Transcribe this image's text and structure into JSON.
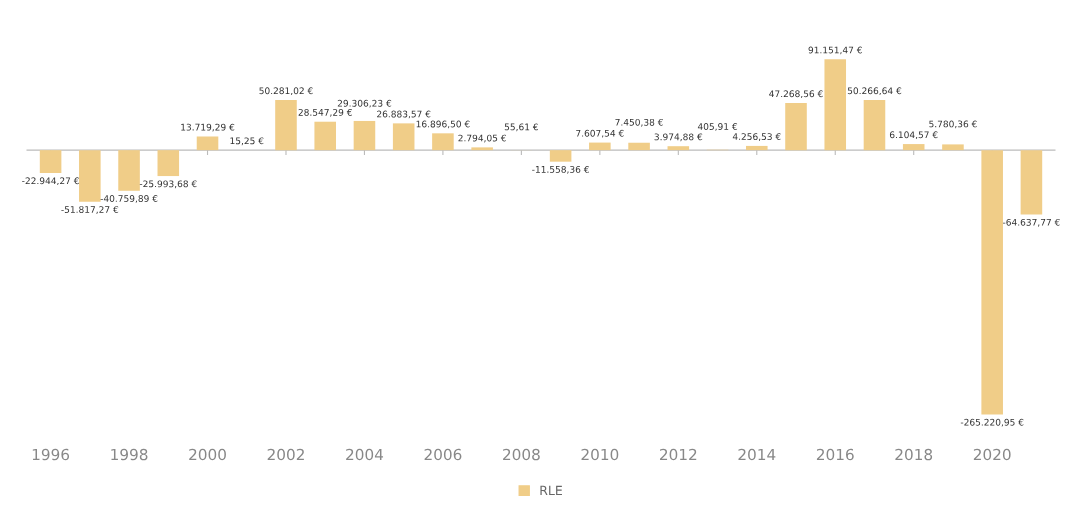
{
  "chart_data": {
    "type": "bar",
    "x": [
      1996,
      1997,
      1998,
      1999,
      2000,
      2001,
      2002,
      2003,
      2004,
      2005,
      2006,
      2007,
      2008,
      2009,
      2010,
      2011,
      2012,
      2013,
      2014,
      2015,
      2016,
      2017,
      2018,
      2019,
      2020,
      2021
    ],
    "series": [
      {
        "name": "RLE",
        "color": "#f0cd88",
        "values": [
          -22944.27,
          -51817.27,
          -40759.89,
          -25993.68,
          13719.29,
          15.25,
          50281.02,
          28547.29,
          29306.23,
          26883.57,
          16896.5,
          2794.05,
          55.61,
          -11558.36,
          7607.54,
          7450.38,
          3974.88,
          405.91,
          4256.53,
          47268.56,
          91151.47,
          50266.64,
          6104.57,
          5780.36,
          -265220.95,
          -64637.77
        ],
        "value_labels": [
          "-22.944,27 €",
          "-51.817,27 €",
          "-40.759,89 €",
          "-25.993,68 €",
          "13.719,29 €",
          "15,25 €",
          "50.281,02 €",
          "28.547,29 €",
          "29.306,23 €",
          "26.883,57 €",
          "16.896,50 €",
          "2.794,05 €",
          "55,61 €",
          "-11.558,36 €",
          "7.607,54 €",
          "7.450,38 €",
          "3.974,88 €",
          "405,91 €",
          "4.256,53 €",
          "47.268,56 €",
          "91.151,47 €",
          "50.266,64 €",
          "6.104,57 €",
          "5.780,36 €",
          "-265.220,95 €",
          "-64.637,77 €"
        ]
      }
    ],
    "xlim": [
      1995.4,
      2021.6
    ],
    "xticks": [
      1996,
      1998,
      2000,
      2002,
      2004,
      2006,
      2008,
      2010,
      2012,
      2014,
      2016,
      2018,
      2020
    ],
    "legend": "bottom"
  }
}
